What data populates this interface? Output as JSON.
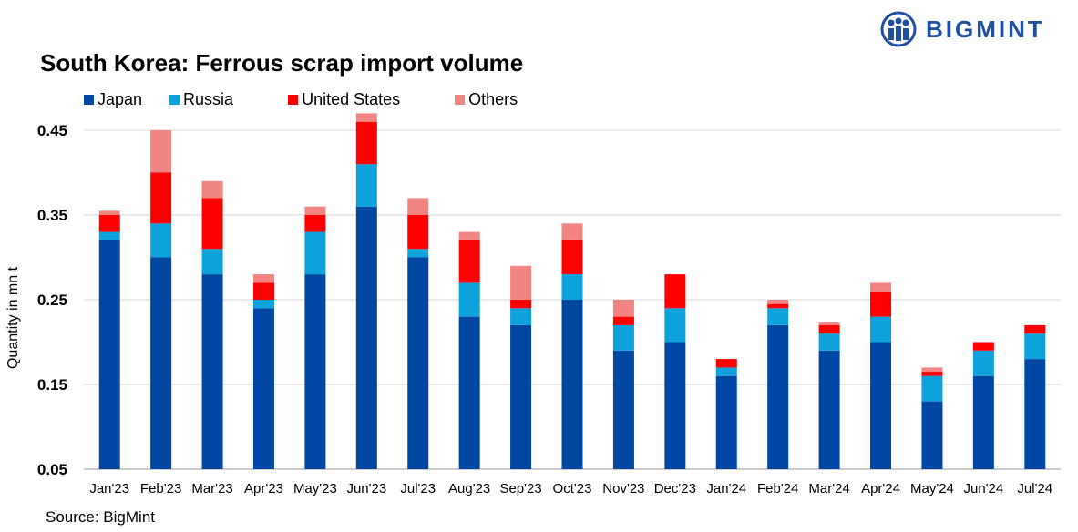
{
  "brand": {
    "name": "BIGMINT",
    "logo_icon": "bigmint-people-icon",
    "color": "#1f4fa0"
  },
  "source": "Source: BigMint",
  "chart_data": {
    "type": "bar",
    "stacked": true,
    "title": "South Korea: Ferrous scrap import volume",
    "xlabel": "",
    "ylabel": "Quantity in mn t",
    "ylim": [
      0.05,
      0.45
    ],
    "yticks": [
      "0.45",
      "0.35",
      "0.25",
      "0.15",
      "0.05"
    ],
    "grid": true,
    "legend_position": "top-left",
    "categories": [
      "Jan'23",
      "Feb'23",
      "Mar'23",
      "Apr'23",
      "May'23",
      "Jun'23",
      "Jul'23",
      "Aug'23",
      "Sep'23",
      "Oct'23",
      "Nov'23",
      "Dec'23",
      "Jan'24",
      "Feb'24",
      "Mar'24",
      "Apr'24",
      "May'24",
      "Jun'24",
      "Jul'24"
    ],
    "series": [
      {
        "name": "Japan",
        "color": "#0047a3",
        "values": [
          0.27,
          0.25,
          0.23,
          0.19,
          0.23,
          0.31,
          0.25,
          0.18,
          0.17,
          0.2,
          0.14,
          0.15,
          0.11,
          0.17,
          0.14,
          0.15,
          0.08,
          0.11,
          0.13
        ]
      },
      {
        "name": "Russia",
        "color": "#0ea2dc",
        "values": [
          0.01,
          0.04,
          0.03,
          0.01,
          0.05,
          0.05,
          0.01,
          0.04,
          0.02,
          0.03,
          0.03,
          0.04,
          0.01,
          0.02,
          0.02,
          0.03,
          0.03,
          0.03,
          0.03
        ]
      },
      {
        "name": "United States",
        "color": "#ff0000",
        "values": [
          0.02,
          0.06,
          0.06,
          0.02,
          0.02,
          0.05,
          0.04,
          0.05,
          0.01,
          0.04,
          0.01,
          0.04,
          0.01,
          0.005,
          0.01,
          0.03,
          0.005,
          0.01,
          0.01
        ]
      },
      {
        "name": "Others",
        "color": "#f28482",
        "values": [
          0.005,
          0.05,
          0.02,
          0.01,
          0.01,
          0.01,
          0.02,
          0.01,
          0.04,
          0.02,
          0.02,
          0.0,
          0.0,
          0.005,
          0.003,
          0.01,
          0.005,
          0.0,
          0.0
        ]
      }
    ]
  }
}
